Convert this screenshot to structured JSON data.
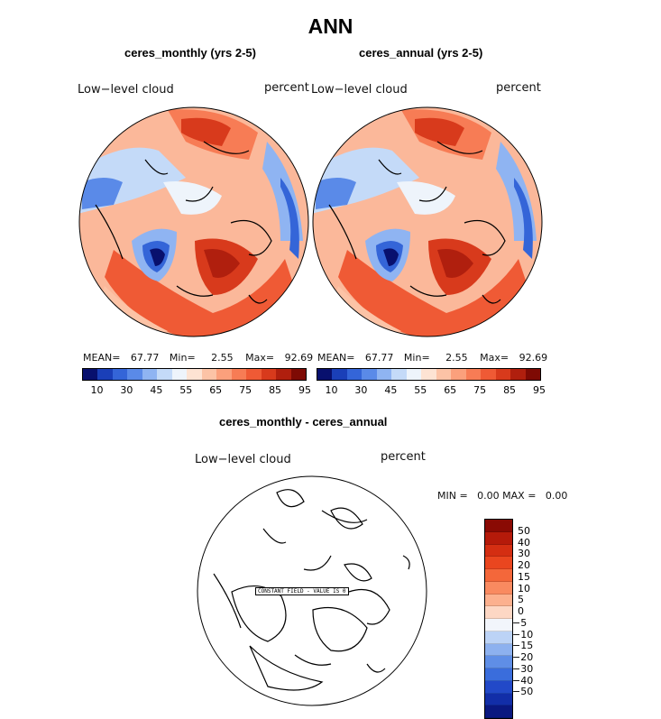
{
  "main_title": "ANN",
  "panels": [
    {
      "title": "ceres_monthly (yrs 2-5)",
      "variable": "Low−level cloud",
      "units": "percent",
      "mean_label": "MEAN=",
      "mean": "67.77",
      "min_label": "Min=",
      "min": "2.55",
      "max_label": "Max=",
      "max": "92.69"
    },
    {
      "title": "ceres_annual (yrs 2-5)",
      "variable": "Low−level cloud",
      "units": "percent",
      "mean_label": "MEAN=",
      "mean": "67.77",
      "min_label": "Min=",
      "min": "2.55",
      "max_label": "Max=",
      "max": "92.69"
    }
  ],
  "colorbar": {
    "ticks": [
      "10",
      "30",
      "45",
      "55",
      "65",
      "75",
      "85",
      "95"
    ],
    "colors": [
      "#08106e",
      "#1a3fb8",
      "#3465d8",
      "#5a8ae8",
      "#8fb4f2",
      "#c4daf8",
      "#eef4fb",
      "#fde3d3",
      "#fcc3a6",
      "#fba07c",
      "#f77c55",
      "#ef5a35",
      "#d83a1c",
      "#b01f0e",
      "#7e0a04"
    ]
  },
  "diff_panel": {
    "title": "ceres_monthly - ceres_annual",
    "variable": "Low−level cloud",
    "units": "percent",
    "minmax_text": "MIN =   0.00 MAX =   0.00",
    "constant_label": "CONSTANT FIELD - VALUE IS 0"
  },
  "diff_colorbar": {
    "ticks": [
      "50",
      "40",
      "30",
      "20",
      "15",
      "10",
      "5",
      "0",
      "−5",
      "−10",
      "−15",
      "−20",
      "−30",
      "−40",
      "−50"
    ],
    "colors": [
      "#8a0a04",
      "#b51a0a",
      "#d42e12",
      "#ea461f",
      "#f4673a",
      "#f98a60",
      "#fcb08e",
      "#fdd7c4",
      "#f2f5fb",
      "#bcd3f6",
      "#8db1ef",
      "#5f8ee6",
      "#3a6ddc",
      "#2249c8",
      "#122ea8",
      "#0a1880"
    ]
  }
}
